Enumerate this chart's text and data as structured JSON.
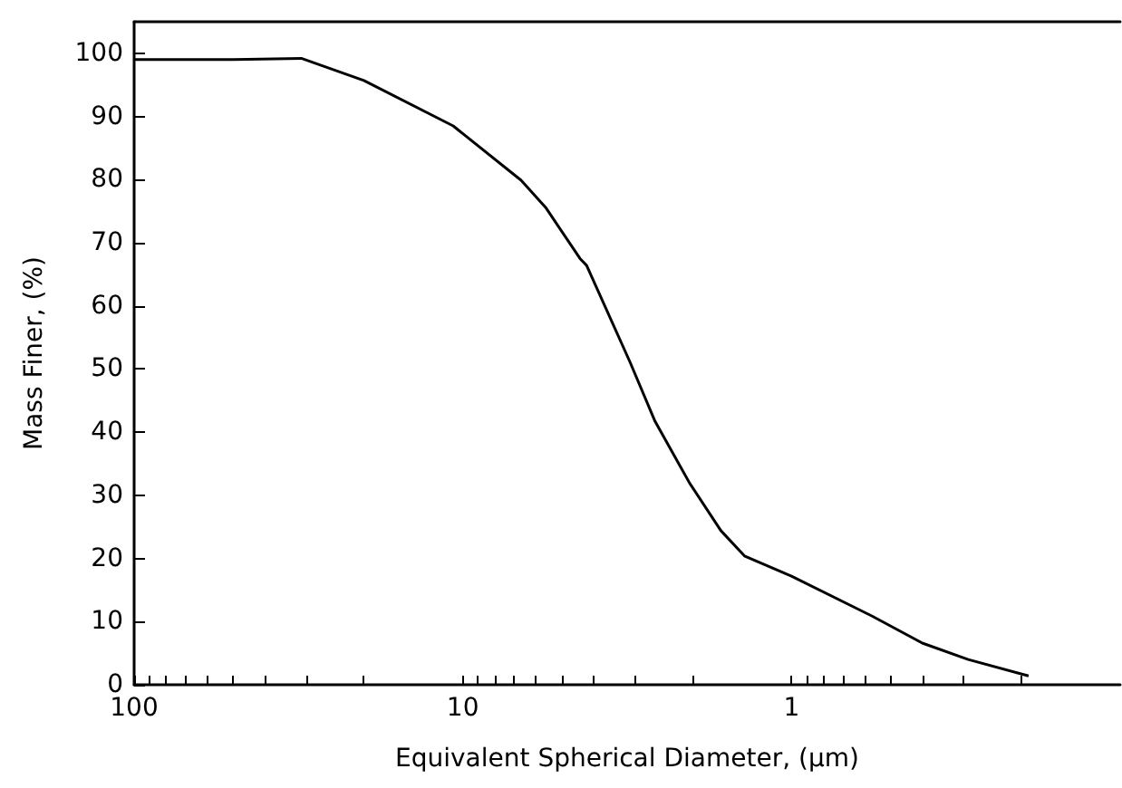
{
  "chart_data": {
    "type": "line",
    "xlabel": "Equivalent Spherical Diameter, (μm)",
    "ylabel": "Mass Finer, (%)",
    "log": "x",
    "xlim": [
      100,
      0.1
    ],
    "ylim": [
      0,
      105
    ],
    "xticks": [
      100,
      {
        "value": 90,
        "label": null
      },
      {
        "value": 80,
        "label": null
      },
      {
        "value": 70,
        "label": null
      },
      {
        "value": 60,
        "label": null
      },
      {
        "value": 50,
        "label": null
      },
      {
        "value": 40,
        "label": null
      },
      {
        "value": 30,
        "label": null
      },
      {
        "value": 20,
        "label": null
      },
      10,
      {
        "value": 9,
        "label": null
      },
      {
        "value": 8,
        "label": null
      },
      {
        "value": 7,
        "label": null
      },
      {
        "value": 6,
        "label": null
      },
      {
        "value": 5,
        "label": null
      },
      {
        "value": 4,
        "label": null
      },
      {
        "value": 3,
        "label": null
      },
      {
        "value": 2,
        "label": null
      },
      1,
      {
        "value": 0.9,
        "label": null
      },
      {
        "value": 0.8,
        "label": null
      },
      {
        "value": 0.7,
        "label": null
      },
      {
        "value": 0.6,
        "label": null
      },
      {
        "value": 0.5,
        "label": null
      },
      {
        "value": 0.4,
        "label": null
      },
      {
        "value": 0.3,
        "label": null
      },
      {
        "value": 0.2,
        "label": null
      }
    ],
    "yticks": [
      0,
      10,
      20,
      30,
      40,
      50,
      60,
      70,
      80,
      90,
      100
    ],
    "grid": false,
    "marker": "none",
    "line_style": "solid",
    "series": [
      {
        "color": "#000000",
        "x": [
          100,
          50,
          31,
          20,
          10.7,
          6.65,
          5.6,
          4.4,
          4.2,
          3.1,
          2.6,
          2.04,
          1.64,
          1.39,
          1,
          0.57,
          0.4,
          0.29,
          0.19
        ],
        "values": [
          99,
          99,
          99.2,
          95.7,
          88.5,
          79.9,
          75.6,
          67.5,
          66.4,
          51.1,
          41.7,
          31.9,
          24.4,
          20.4,
          17.2,
          10.9,
          6.6,
          4.0,
          1.4
        ]
      }
    ]
  }
}
